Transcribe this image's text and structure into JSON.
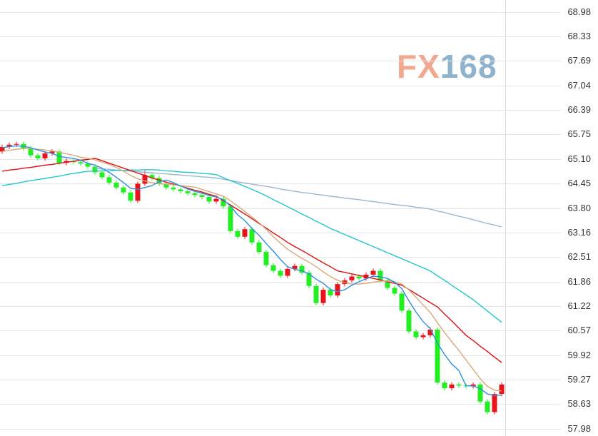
{
  "chart_data": {
    "type": "candlestick",
    "watermark": {
      "parts": [
        "FX",
        "168"
      ],
      "colors": [
        "#f2a88e",
        "#8fb3cc"
      ]
    },
    "ylim": [
      57.79,
      69.3
    ],
    "yticks": [
      68.98,
      68.33,
      67.69,
      67.04,
      66.39,
      65.75,
      {
        "value": 65.1,
        "label": "65.10"
      },
      64.45,
      {
        "value": 63.8,
        "label": "63.80"
      },
      63.16,
      62.51,
      61.86,
      61.22,
      60.57,
      59.92,
      59.27,
      58.63,
      57.98
    ],
    "grid": true,
    "up_color": "#e8141c",
    "down_color": "#22ee22",
    "candles": {
      "open": [
        65.3,
        65.42,
        65.48,
        65.5,
        65.38,
        65.2,
        65.12,
        65.25,
        65.3,
        65.0,
        65.05,
        65.02,
        64.98,
        64.9,
        64.75,
        64.62,
        64.48,
        64.35,
        64.22,
        64.0,
        64.45,
        64.68,
        64.6,
        64.45,
        64.35,
        64.3,
        64.25,
        64.2,
        64.15,
        64.1,
        63.98,
        64.05,
        63.85,
        63.2,
        63.05,
        63.25,
        62.9,
        62.65,
        62.3,
        62.15,
        62.02,
        62.2,
        62.28,
        62.1,
        61.75,
        61.3,
        61.65,
        61.5,
        61.8,
        61.9,
        62.0,
        61.95,
        62.05,
        62.15,
        61.9,
        61.7,
        61.55,
        61.1,
        60.55,
        60.4,
        60.45,
        60.6,
        59.2,
        59.05,
        59.15,
        59.12,
        59.1,
        59.15,
        58.7,
        58.42,
        58.9
      ],
      "high": [
        65.48,
        65.54,
        65.56,
        65.56,
        65.44,
        65.26,
        65.31,
        65.36,
        65.36,
        65.11,
        65.11,
        65.08,
        65.04,
        64.96,
        64.81,
        64.68,
        64.54,
        64.41,
        64.28,
        64.51,
        64.8,
        64.74,
        64.66,
        64.51,
        64.41,
        64.36,
        64.31,
        64.26,
        64.21,
        64.16,
        64.11,
        64.11,
        63.91,
        63.26,
        63.31,
        63.31,
        62.96,
        62.71,
        62.36,
        62.21,
        62.26,
        62.34,
        62.34,
        62.16,
        61.81,
        61.71,
        61.71,
        61.86,
        61.96,
        62.06,
        62.06,
        62.11,
        62.21,
        62.21,
        61.96,
        61.76,
        61.61,
        61.16,
        60.61,
        60.51,
        60.66,
        60.66,
        59.26,
        59.21,
        59.21,
        59.18,
        59.21,
        59.21,
        58.76,
        58.96,
        59.21
      ],
      "low": [
        65.24,
        65.36,
        65.42,
        65.32,
        65.14,
        65.06,
        65.06,
        65.19,
        64.94,
        64.94,
        64.96,
        64.92,
        64.84,
        64.69,
        64.56,
        64.42,
        64.29,
        64.16,
        63.94,
        63.94,
        64.39,
        64.54,
        64.39,
        64.29,
        64.24,
        64.19,
        64.14,
        64.09,
        64.04,
        63.92,
        63.92,
        63.79,
        63.14,
        62.99,
        62.99,
        62.84,
        62.59,
        62.24,
        62.09,
        61.96,
        61.96,
        62.14,
        62.04,
        61.69,
        61.24,
        61.24,
        61.44,
        61.44,
        61.74,
        61.84,
        61.89,
        61.89,
        61.99,
        61.84,
        61.64,
        61.49,
        61.04,
        60.49,
        60.34,
        60.34,
        60.39,
        59.14,
        58.99,
        58.99,
        59.06,
        59.04,
        59.04,
        58.64,
        58.36,
        58.36,
        58.84
      ],
      "close": [
        65.42,
        65.48,
        65.5,
        65.38,
        65.2,
        65.12,
        65.25,
        65.3,
        65.0,
        65.05,
        65.02,
        64.98,
        64.9,
        64.75,
        64.62,
        64.48,
        64.35,
        64.22,
        64.0,
        64.45,
        64.68,
        64.6,
        64.45,
        64.35,
        64.3,
        64.25,
        64.2,
        64.15,
        64.1,
        63.98,
        64.05,
        63.85,
        63.2,
        63.05,
        63.25,
        62.9,
        62.65,
        62.3,
        62.15,
        62.02,
        62.2,
        62.28,
        62.1,
        61.75,
        61.3,
        61.65,
        61.5,
        61.8,
        61.9,
        62.0,
        61.95,
        62.05,
        62.15,
        61.9,
        61.7,
        61.55,
        61.1,
        60.55,
        60.4,
        60.45,
        60.6,
        59.2,
        59.05,
        59.15,
        59.12,
        59.1,
        59.15,
        58.7,
        58.42,
        58.9,
        59.15
      ]
    },
    "series": [
      {
        "color": "#9bb7d2",
        "values": [
          null,
          null,
          null,
          null,
          null,
          null,
          null,
          null,
          null,
          null,
          null,
          null,
          null,
          64.86,
          64.84,
          64.83,
          64.81,
          64.8,
          64.78,
          64.77,
          64.75,
          64.74,
          64.72,
          64.71,
          64.69,
          64.68,
          64.66,
          64.65,
          64.63,
          64.62,
          64.6,
          64.57,
          64.54,
          64.5,
          64.47,
          64.44,
          64.41,
          64.38,
          64.35,
          64.31,
          64.28,
          64.25,
          64.22,
          64.2,
          64.17,
          64.15,
          64.12,
          64.1,
          64.07,
          64.05,
          64.03,
          64.0,
          63.98,
          63.95,
          63.93,
          63.9,
          63.88,
          63.86,
          63.83,
          63.81,
          63.78,
          63.73,
          63.69,
          63.64,
          63.59,
          63.55,
          63.5,
          63.45,
          63.4,
          63.36,
          63.31
        ]
      },
      {
        "color": "#22c8cc",
        "values": [
          64.4,
          64.43,
          64.46,
          64.5,
          64.53,
          64.56,
          64.59,
          64.62,
          64.65,
          64.69,
          64.72,
          64.75,
          64.78,
          64.78,
          64.79,
          64.79,
          64.8,
          64.8,
          64.81,
          64.81,
          64.82,
          64.82,
          64.81,
          64.79,
          64.78,
          64.76,
          64.75,
          64.74,
          64.72,
          64.71,
          64.69,
          64.61,
          64.53,
          64.46,
          64.38,
          64.3,
          64.22,
          64.13,
          64.03,
          63.94,
          63.84,
          63.75,
          63.65,
          63.56,
          63.46,
          63.37,
          63.27,
          63.19,
          63.11,
          63.03,
          62.95,
          62.87,
          62.79,
          62.71,
          62.63,
          62.55,
          62.47,
          62.39,
          62.31,
          62.23,
          62.15,
          62.02,
          61.9,
          61.77,
          61.64,
          61.52,
          61.39,
          61.24,
          61.09,
          60.94,
          60.79
        ]
      },
      {
        "color": "#dd1111",
        "values": [
          64.78,
          64.81,
          64.83,
          64.86,
          64.88,
          64.91,
          64.94,
          64.96,
          64.99,
          65.02,
          65.04,
          65.07,
          65.09,
          65.12,
          65.06,
          64.99,
          64.93,
          64.86,
          64.8,
          64.73,
          64.67,
          64.6,
          64.55,
          64.49,
          64.44,
          64.39,
          64.33,
          64.28,
          64.23,
          64.17,
          64.12,
          64.0,
          63.89,
          63.77,
          63.65,
          63.53,
          63.4,
          63.28,
          63.15,
          63.03,
          62.9,
          62.79,
          62.69,
          62.58,
          62.47,
          62.36,
          62.26,
          62.15,
          62.11,
          62.07,
          62.03,
          61.99,
          61.95,
          61.91,
          61.86,
          61.82,
          61.77,
          61.66,
          61.54,
          61.43,
          61.31,
          61.2,
          61.01,
          60.83,
          60.64,
          60.45,
          60.31,
          60.16,
          60.02,
          59.87,
          59.73
        ]
      },
      {
        "color": "#d9a878",
        "values": [
          65.3,
          65.33,
          65.36,
          65.38,
          65.38,
          65.36,
          65.34,
          65.32,
          65.28,
          65.24,
          65.2,
          65.15,
          65.12,
          65.08,
          65.02,
          64.96,
          64.88,
          64.78,
          64.67,
          64.58,
          64.52,
          64.48,
          64.45,
          64.44,
          64.42,
          64.4,
          64.38,
          64.36,
          64.3,
          64.24,
          64.18,
          64.12,
          64.0,
          63.86,
          63.72,
          63.57,
          63.42,
          63.25,
          63.05,
          62.88,
          62.72,
          62.6,
          62.48,
          62.38,
          62.26,
          62.12,
          62.0,
          61.9,
          61.84,
          61.8,
          61.8,
          61.82,
          61.85,
          61.88,
          61.88,
          61.86,
          61.8,
          61.65,
          61.45,
          61.25,
          61.05,
          60.78,
          60.52,
          60.28,
          60.05,
          59.8,
          59.55,
          59.3,
          59.1,
          59.0,
          58.98
        ]
      },
      {
        "color": "#2f8fe0",
        "values": [
          65.4,
          65.43,
          65.45,
          65.44,
          65.4,
          65.34,
          65.29,
          65.25,
          65.17,
          65.14,
          65.12,
          65.07,
          64.99,
          64.94,
          64.86,
          64.75,
          64.62,
          64.48,
          64.33,
          64.3,
          64.35,
          64.4,
          64.5,
          64.55,
          64.48,
          64.39,
          64.31,
          64.25,
          64.2,
          64.14,
          64.1,
          64.03,
          63.86,
          63.63,
          63.48,
          63.27,
          63.09,
          62.87,
          62.67,
          62.45,
          62.26,
          62.19,
          62.15,
          62.07,
          61.93,
          61.82,
          61.66,
          61.6,
          61.65,
          61.77,
          61.86,
          61.94,
          62.01,
          61.99,
          61.95,
          61.85,
          61.68,
          61.36,
          61.06,
          60.81,
          60.62,
          60.24,
          59.94,
          59.69,
          59.52,
          59.12,
          59.11,
          59.04,
          58.9,
          58.86,
          58.87
        ]
      }
    ]
  }
}
